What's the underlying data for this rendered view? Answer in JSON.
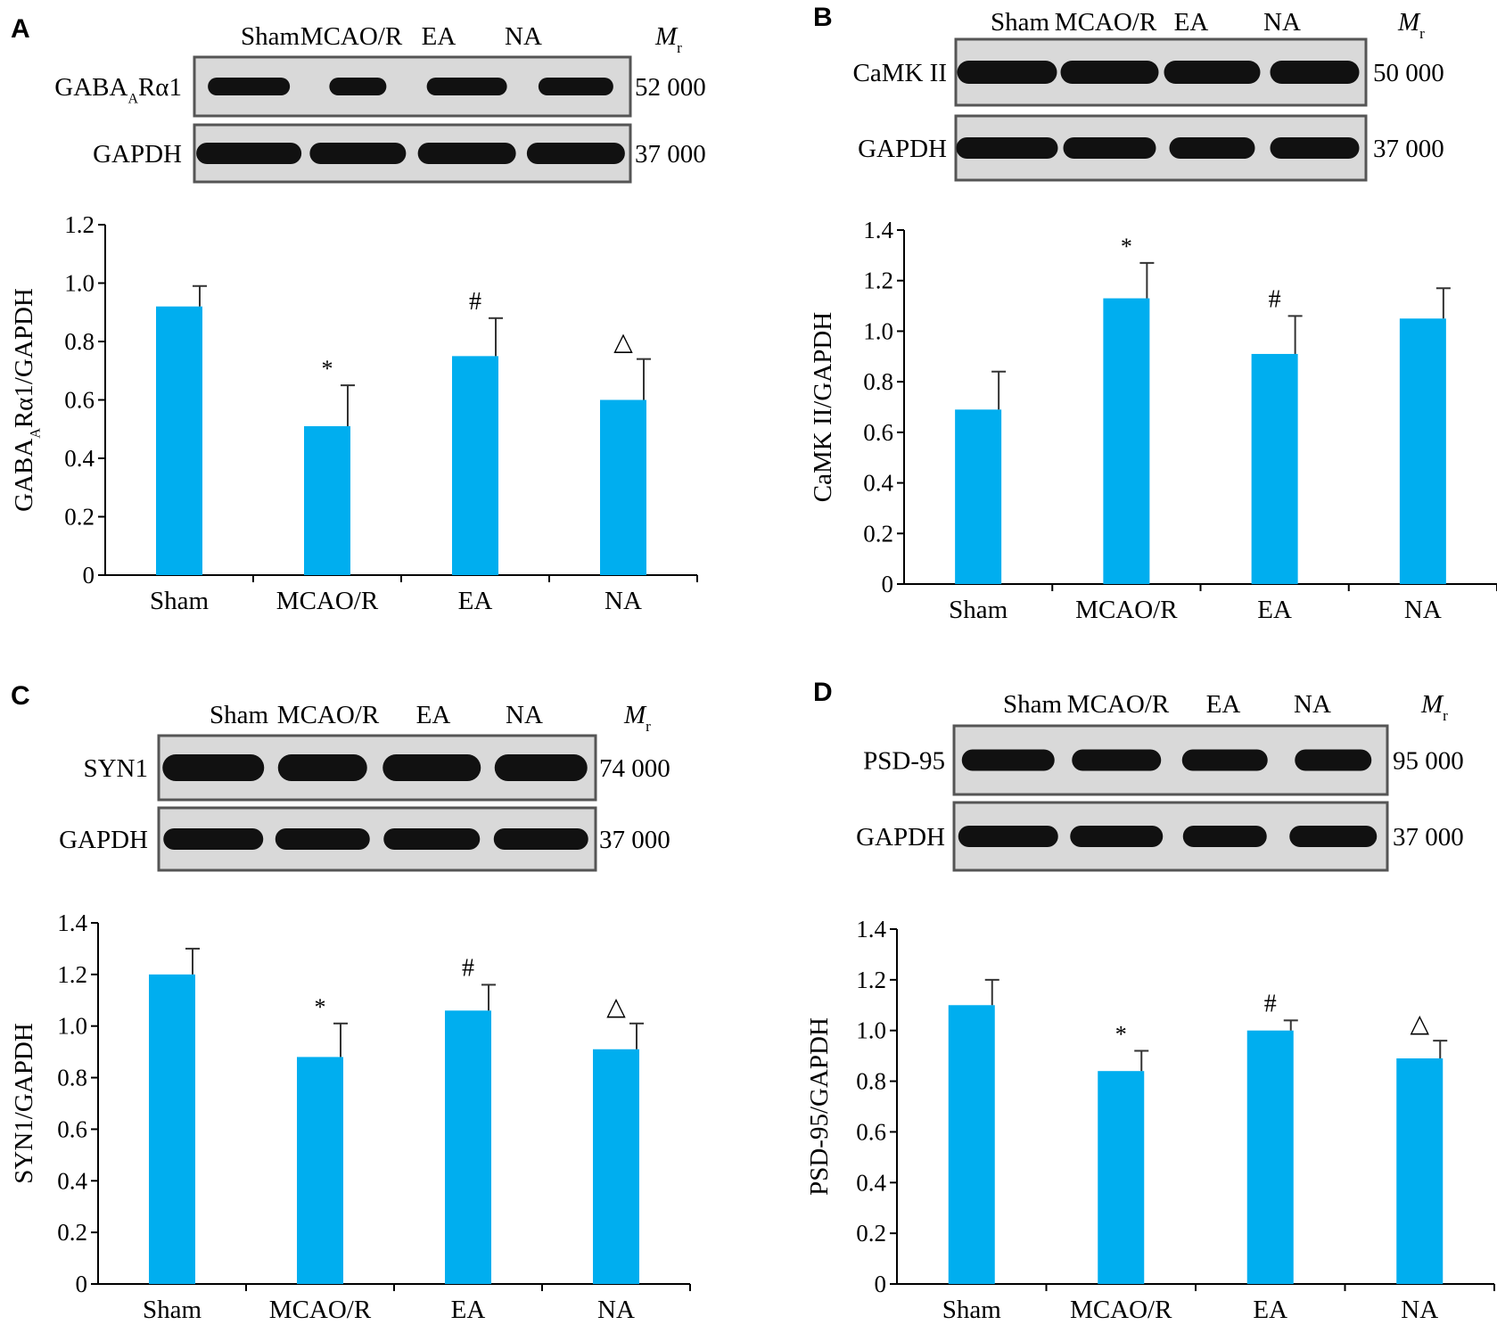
{
  "colors": {
    "bar": "#00aeef",
    "axis": "#000000",
    "blot_bg": "#d9d9d9",
    "band": "#111111"
  },
  "lane_labels": [
    "Sham",
    "MCAO/R",
    "EA",
    "NA"
  ],
  "mr_label": "M",
  "mr_sub": "r",
  "panels": [
    {
      "letter": "A",
      "blots": [
        {
          "name": "GABAARα1",
          "name_main": "GABA",
          "name_sub": "A",
          "name_tail": "Rα1",
          "mr": "52 000"
        },
        {
          "name": "GAPDH",
          "name_main": "GAPDH",
          "name_sub": "",
          "name_tail": "",
          "mr": "37 000"
        }
      ],
      "ylabel_main": "GABA",
      "ylabel_sub": "A",
      "ylabel_tail": "Rα1/GAPDH"
    },
    {
      "letter": "B",
      "blots": [
        {
          "name": "CaMK II",
          "name_main": "CaMK II",
          "name_sub": "",
          "name_tail": "",
          "mr": "50 000"
        },
        {
          "name": "GAPDH",
          "name_main": "GAPDH",
          "name_sub": "",
          "name_tail": "",
          "mr": "37 000"
        }
      ],
      "ylabel_main": "CaMK II/GAPDH",
      "ylabel_sub": "",
      "ylabel_tail": ""
    },
    {
      "letter": "C",
      "blots": [
        {
          "name": "SYN1",
          "name_main": "SYN1",
          "name_sub": "",
          "name_tail": "",
          "mr": "74 000"
        },
        {
          "name": "GAPDH",
          "name_main": "GAPDH",
          "name_sub": "",
          "name_tail": "",
          "mr": "37 000"
        }
      ],
      "ylabel_main": "SYN1/GAPDH",
      "ylabel_sub": "",
      "ylabel_tail": ""
    },
    {
      "letter": "D",
      "blots": [
        {
          "name": "PSD-95",
          "name_main": "PSD-95",
          "name_sub": "",
          "name_tail": "",
          "mr": "95 000"
        },
        {
          "name": "GAPDH",
          "name_main": "GAPDH",
          "name_sub": "",
          "name_tail": "",
          "mr": "37 000"
        }
      ],
      "ylabel_main": "PSD-95/GAPDH",
      "ylabel_sub": "",
      "ylabel_tail": ""
    }
  ],
  "chart_data": [
    {
      "panel": "A",
      "type": "bar",
      "categories": [
        "Sham",
        "MCAO/R",
        "EA",
        "NA"
      ],
      "values": [
        0.92,
        0.51,
        0.75,
        0.6
      ],
      "errors": [
        0.07,
        0.14,
        0.13,
        0.14
      ],
      "markers": [
        "",
        "*",
        "#",
        "△"
      ],
      "ylabel": "GABAARα1/GAPDH",
      "ylim": [
        0,
        1.2
      ],
      "yticks": [
        "0",
        "0.2",
        "0.4",
        "0.6",
        "0.8",
        "1.0",
        "1.2"
      ]
    },
    {
      "panel": "B",
      "type": "bar",
      "categories": [
        "Sham",
        "MCAO/R",
        "EA",
        "NA"
      ],
      "values": [
        0.69,
        1.13,
        0.91,
        1.05
      ],
      "errors": [
        0.15,
        0.14,
        0.15,
        0.12
      ],
      "markers": [
        "",
        "*",
        "#",
        ""
      ],
      "ylabel": "CaMK II/GAPDH",
      "ylim": [
        0,
        1.4
      ],
      "yticks": [
        "0",
        "0.2",
        "0.4",
        "0.6",
        "0.8",
        "1.0",
        "1.2",
        "1.4"
      ]
    },
    {
      "panel": "C",
      "type": "bar",
      "categories": [
        "Sham",
        "MCAO/R",
        "EA",
        "NA"
      ],
      "values": [
        1.2,
        0.88,
        1.06,
        0.91
      ],
      "errors": [
        0.1,
        0.13,
        0.1,
        0.1
      ],
      "markers": [
        "",
        "*",
        "#",
        "△"
      ],
      "ylabel": "SYN1/GAPDH",
      "ylim": [
        0,
        1.4
      ],
      "yticks": [
        "0",
        "0.2",
        "0.4",
        "0.6",
        "0.8",
        "1.0",
        "1.2",
        "1.4"
      ]
    },
    {
      "panel": "D",
      "type": "bar",
      "categories": [
        "Sham",
        "MCAO/R",
        "EA",
        "NA"
      ],
      "values": [
        1.1,
        0.84,
        1.0,
        0.89
      ],
      "errors": [
        0.1,
        0.08,
        0.04,
        0.07
      ],
      "markers": [
        "",
        "*",
        "#",
        "△"
      ],
      "ylabel": "PSD-95/GAPDH",
      "ylim": [
        0,
        1.4
      ],
      "yticks": [
        "0",
        "0.2",
        "0.4",
        "0.6",
        "0.8",
        "1.0",
        "1.2",
        "1.4"
      ]
    }
  ]
}
